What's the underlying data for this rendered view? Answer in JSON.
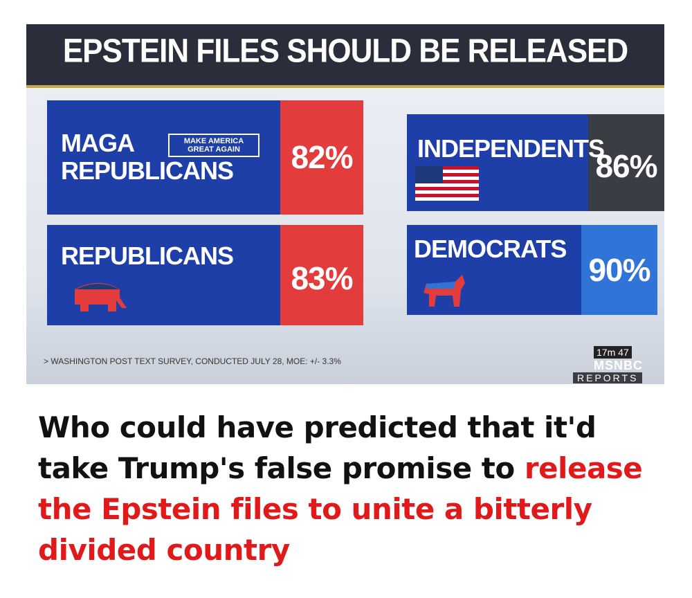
{
  "graphic": {
    "title": "EPSTEIN FILES SHOULD BE RELEASED",
    "panels": [
      {
        "label": "MAGA REPUBLICANS",
        "badge": "MAKE AMERICA GREAT AGAIN",
        "value": "82%"
      },
      {
        "label": "INDEPENDENTS",
        "value": "86%"
      },
      {
        "label": "REPUBLICANS",
        "value": "83%"
      },
      {
        "label": "DEMOCRATS",
        "value": "90%"
      }
    ],
    "source": "> WASHINGTON POST TEXT SURVEY, CONDUCTED JULY 28, MOE: +/- 3.3%",
    "timer": "17m 47",
    "network": "MSNBC",
    "show": "REPORTS"
  },
  "caption": {
    "text": "Who could have predicted that it'd take Trump's false promise to",
    "highlight": "release the Epstein files to unite a bitterly divided country"
  }
}
